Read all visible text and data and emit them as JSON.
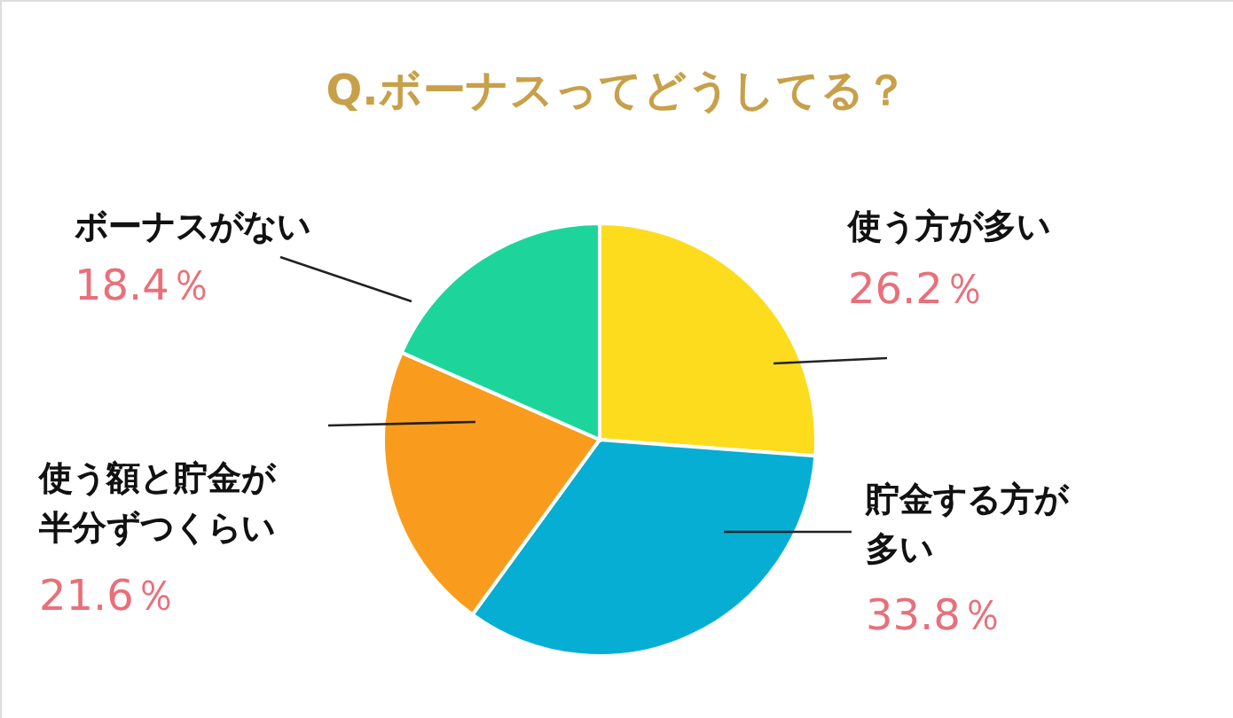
{
  "chart_data": {
    "type": "pie",
    "title": "Q.ボーナスってどうしてる？",
    "categories": [
      "使う方が多い",
      "貯金する方が多い",
      "使う額と貯金が半分ずつくらい",
      "ボーナスがない"
    ],
    "values": [
      26.2,
      33.8,
      21.6,
      18.4
    ],
    "colors": [
      "#fddc1e",
      "#07aed4",
      "#f99c1e",
      "#1dd59b"
    ],
    "value_labels": [
      "26.2％",
      "33.8％",
      "21.6％",
      "18.4％"
    ]
  }
}
